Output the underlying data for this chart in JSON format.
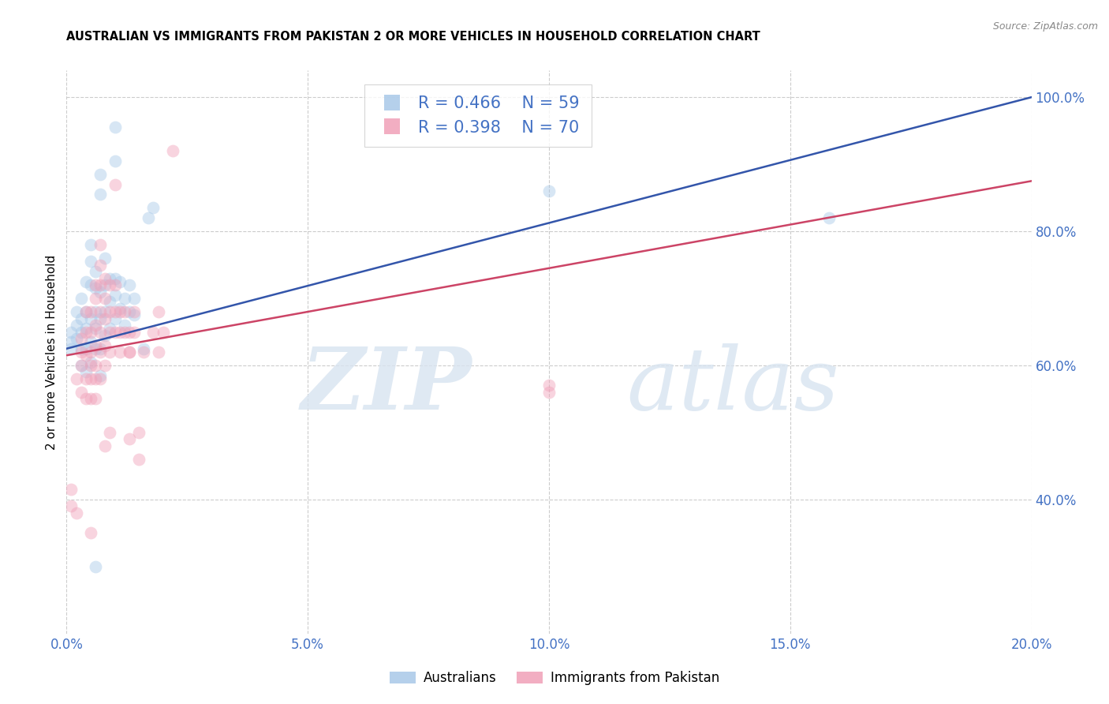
{
  "title": "AUSTRALIAN VS IMMIGRANTS FROM PAKISTAN 2 OR MORE VEHICLES IN HOUSEHOLD CORRELATION CHART",
  "source": "Source: ZipAtlas.com",
  "ylabel": "2 or more Vehicles in Household",
  "x_min": 0.0,
  "x_max": 0.2,
  "y_min": 0.2,
  "y_max": 1.04,
  "x_tick_labels": [
    "0.0%",
    "5.0%",
    "10.0%",
    "15.0%",
    "20.0%"
  ],
  "x_tick_values": [
    0.0,
    0.05,
    0.1,
    0.15,
    0.2
  ],
  "y_tick_labels": [
    "40.0%",
    "60.0%",
    "80.0%",
    "100.0%"
  ],
  "y_tick_values": [
    0.4,
    0.6,
    0.8,
    1.0
  ],
  "blue_color": "#a8c8e8",
  "pink_color": "#f0a0b8",
  "blue_line_color": "#3355aa",
  "pink_line_color": "#cc4466",
  "label_color": "#4472c4",
  "legend_r_blue": "R = 0.466",
  "legend_n_blue": "N = 59",
  "legend_r_pink": "R = 0.398",
  "legend_n_pink": "N = 70",
  "legend_label_blue": "Australians",
  "legend_label_pink": "Immigrants from Pakistan",
  "watermark_zip": "ZIP",
  "watermark_atlas": "atlas",
  "blue_dots": [
    [
      0.001,
      0.625
    ],
    [
      0.001,
      0.635
    ],
    [
      0.001,
      0.65
    ],
    [
      0.002,
      0.64
    ],
    [
      0.002,
      0.66
    ],
    [
      0.002,
      0.68
    ],
    [
      0.003,
      0.6
    ],
    [
      0.003,
      0.625
    ],
    [
      0.003,
      0.65
    ],
    [
      0.003,
      0.67
    ],
    [
      0.003,
      0.7
    ],
    [
      0.004,
      0.59
    ],
    [
      0.004,
      0.625
    ],
    [
      0.004,
      0.655
    ],
    [
      0.004,
      0.68
    ],
    [
      0.004,
      0.725
    ],
    [
      0.005,
      0.605
    ],
    [
      0.005,
      0.635
    ],
    [
      0.005,
      0.67
    ],
    [
      0.005,
      0.72
    ],
    [
      0.005,
      0.755
    ],
    [
      0.005,
      0.78
    ],
    [
      0.006,
      0.625
    ],
    [
      0.006,
      0.655
    ],
    [
      0.006,
      0.68
    ],
    [
      0.006,
      0.715
    ],
    [
      0.006,
      0.74
    ],
    [
      0.007,
      0.585
    ],
    [
      0.007,
      0.625
    ],
    [
      0.007,
      0.67
    ],
    [
      0.007,
      0.71
    ],
    [
      0.007,
      0.855
    ],
    [
      0.007,
      0.885
    ],
    [
      0.008,
      0.645
    ],
    [
      0.008,
      0.68
    ],
    [
      0.008,
      0.72
    ],
    [
      0.008,
      0.76
    ],
    [
      0.009,
      0.655
    ],
    [
      0.009,
      0.695
    ],
    [
      0.009,
      0.73
    ],
    [
      0.01,
      0.67
    ],
    [
      0.01,
      0.705
    ],
    [
      0.01,
      0.73
    ],
    [
      0.01,
      0.905
    ],
    [
      0.011,
      0.685
    ],
    [
      0.011,
      0.725
    ],
    [
      0.012,
      0.66
    ],
    [
      0.012,
      0.7
    ],
    [
      0.013,
      0.68
    ],
    [
      0.013,
      0.72
    ],
    [
      0.014,
      0.7
    ],
    [
      0.014,
      0.675
    ],
    [
      0.016,
      0.625
    ],
    [
      0.006,
      0.3
    ],
    [
      0.017,
      0.82
    ],
    [
      0.018,
      0.835
    ],
    [
      0.1,
      0.86
    ],
    [
      0.158,
      0.82
    ],
    [
      0.01,
      0.955
    ]
  ],
  "pink_dots": [
    [
      0.001,
      0.39
    ],
    [
      0.001,
      0.415
    ],
    [
      0.002,
      0.58
    ],
    [
      0.003,
      0.56
    ],
    [
      0.003,
      0.6
    ],
    [
      0.003,
      0.62
    ],
    [
      0.003,
      0.64
    ],
    [
      0.004,
      0.55
    ],
    [
      0.004,
      0.58
    ],
    [
      0.004,
      0.615
    ],
    [
      0.004,
      0.65
    ],
    [
      0.004,
      0.68
    ],
    [
      0.005,
      0.55
    ],
    [
      0.005,
      0.58
    ],
    [
      0.005,
      0.6
    ],
    [
      0.005,
      0.62
    ],
    [
      0.005,
      0.65
    ],
    [
      0.005,
      0.68
    ],
    [
      0.005,
      0.35
    ],
    [
      0.006,
      0.55
    ],
    [
      0.006,
      0.58
    ],
    [
      0.006,
      0.6
    ],
    [
      0.006,
      0.63
    ],
    [
      0.006,
      0.66
    ],
    [
      0.006,
      0.7
    ],
    [
      0.006,
      0.72
    ],
    [
      0.007,
      0.58
    ],
    [
      0.007,
      0.62
    ],
    [
      0.007,
      0.65
    ],
    [
      0.007,
      0.68
    ],
    [
      0.007,
      0.72
    ],
    [
      0.007,
      0.75
    ],
    [
      0.007,
      0.78
    ],
    [
      0.008,
      0.6
    ],
    [
      0.008,
      0.63
    ],
    [
      0.008,
      0.67
    ],
    [
      0.008,
      0.7
    ],
    [
      0.008,
      0.73
    ],
    [
      0.008,
      0.48
    ],
    [
      0.009,
      0.62
    ],
    [
      0.009,
      0.65
    ],
    [
      0.009,
      0.68
    ],
    [
      0.009,
      0.72
    ],
    [
      0.009,
      0.5
    ],
    [
      0.01,
      0.65
    ],
    [
      0.01,
      0.68
    ],
    [
      0.01,
      0.72
    ],
    [
      0.01,
      0.87
    ],
    [
      0.011,
      0.62
    ],
    [
      0.011,
      0.65
    ],
    [
      0.011,
      0.68
    ],
    [
      0.012,
      0.65
    ],
    [
      0.012,
      0.68
    ],
    [
      0.013,
      0.62
    ],
    [
      0.013,
      0.65
    ],
    [
      0.013,
      0.62
    ],
    [
      0.013,
      0.49
    ],
    [
      0.014,
      0.65
    ],
    [
      0.014,
      0.68
    ],
    [
      0.015,
      0.5
    ],
    [
      0.015,
      0.46
    ],
    [
      0.016,
      0.62
    ],
    [
      0.018,
      0.65
    ],
    [
      0.019,
      0.68
    ],
    [
      0.019,
      0.62
    ],
    [
      0.02,
      0.65
    ],
    [
      0.1,
      0.56
    ],
    [
      0.022,
      0.92
    ],
    [
      0.002,
      0.38
    ],
    [
      0.1,
      0.57
    ]
  ],
  "blue_line_x": [
    0.0,
    0.2
  ],
  "blue_line_y": [
    0.625,
    1.0
  ],
  "pink_line_x": [
    0.0,
    0.2
  ],
  "pink_line_y": [
    0.615,
    0.875
  ],
  "dot_size": 130,
  "dot_alpha": 0.45,
  "line_width": 1.8
}
